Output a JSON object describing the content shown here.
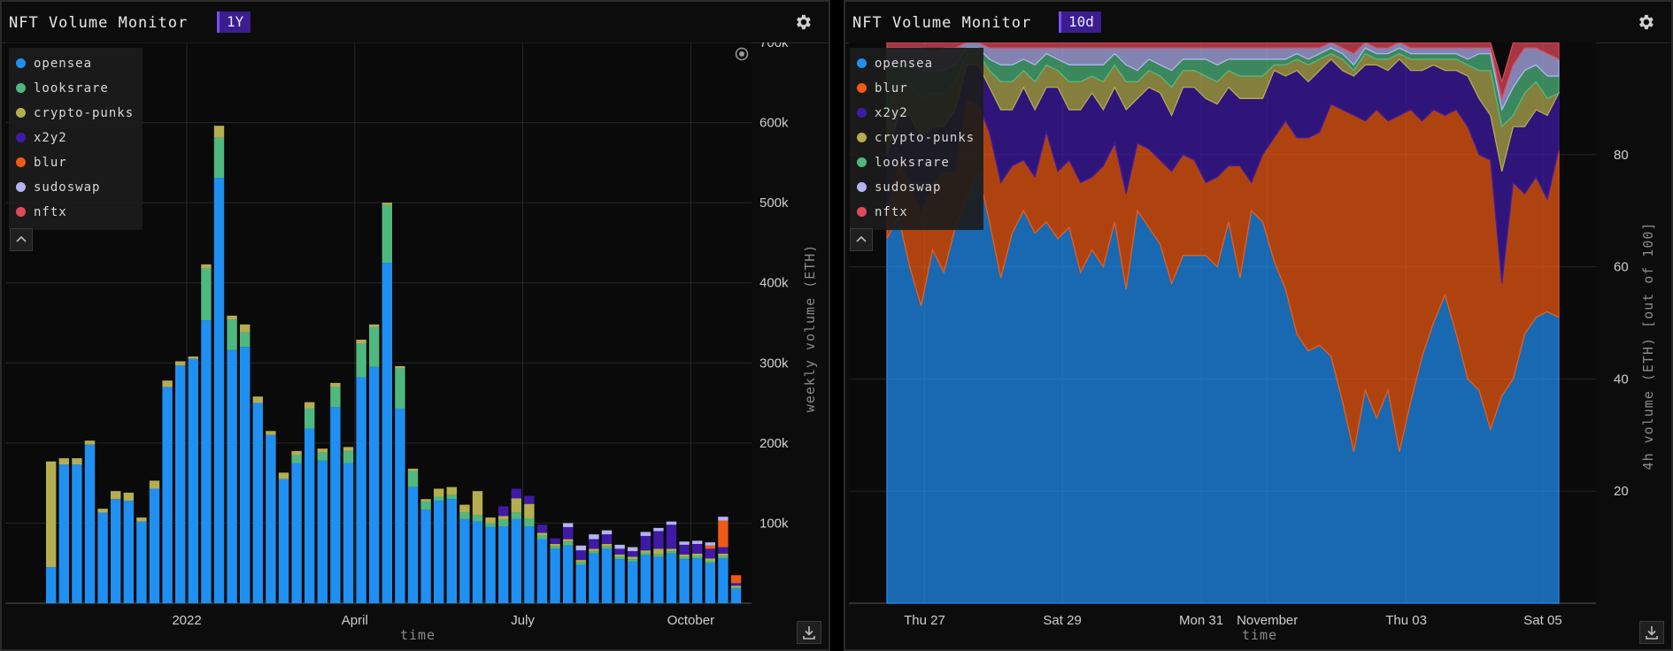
{
  "colors": {
    "opensea": "#1f8ff2",
    "looksrare": "#4fb87f",
    "crypto-punks": "#b5ad52",
    "x2y2": "#3e1aa6",
    "blur": "#f05a14",
    "sudoswap": "#b3b3f2",
    "nftx": "#e0495a"
  },
  "left": {
    "title": "NFT Volume Monitor",
    "range": "1Y",
    "legend": [
      "opensea",
      "looksrare",
      "crypto-punks",
      "x2y2",
      "blur",
      "sudoswap",
      "nftx"
    ],
    "chart_data": {
      "type": "bar",
      "stacked": true,
      "xlabel": "time",
      "ylabel": "weekly volume (ETH)",
      "ylim": [
        0,
        700000
      ],
      "y_ticks": [
        "100k",
        "200k",
        "300k",
        "400k",
        "500k",
        "600k",
        "700k"
      ],
      "x_ticks": [
        {
          "label": "2022",
          "index": 10.5
        },
        {
          "label": "April",
          "index": 23.5
        },
        {
          "label": "July",
          "index": 36.5
        },
        {
          "label": "October",
          "index": 49.5
        }
      ],
      "series": [
        {
          "name": "opensea",
          "values": [
            45000,
            173000,
            173000,
            198000,
            113000,
            130000,
            128000,
            102000,
            143000,
            270000,
            297000,
            305000,
            353000,
            531000,
            316000,
            320000,
            250000,
            210000,
            155000,
            175000,
            218000,
            178000,
            245000,
            175000,
            282000,
            295000,
            425000,
            243000,
            145000,
            117000,
            128000,
            130000,
            105000,
            102000,
            95000,
            96000,
            105000,
            96000,
            80000,
            68000,
            72000,
            48000,
            62000,
            68000,
            55000,
            52000,
            60000,
            58000,
            62000,
            55000,
            56000,
            50000,
            56000,
            18000
          ]
        },
        {
          "name": "looksrare",
          "values": [
            0,
            0,
            0,
            0,
            0,
            0,
            0,
            0,
            0,
            0,
            0,
            0,
            65000,
            50000,
            38000,
            18000,
            0,
            0,
            0,
            10000,
            25000,
            10000,
            25000,
            15000,
            42000,
            50000,
            72000,
            50000,
            20000,
            10000,
            5000,
            5000,
            8000,
            8000,
            5000,
            8000,
            8000,
            10000,
            5000,
            3000,
            5000,
            3000,
            3000,
            3000,
            3000,
            3000,
            3000,
            3000,
            3000,
            3000,
            3000,
            3000,
            3000,
            2000
          ]
        },
        {
          "name": "crypto-punks",
          "values": [
            132000,
            8000,
            8000,
            5000,
            5000,
            10000,
            10000,
            5000,
            10000,
            8000,
            5000,
            3000,
            5000,
            15000,
            5000,
            10000,
            8000,
            5000,
            8000,
            5000,
            8000,
            5000,
            5000,
            5000,
            5000,
            3000,
            3000,
            3000,
            3000,
            3000,
            10000,
            10000,
            10000,
            30000,
            7000,
            5000,
            18000,
            18000,
            3000,
            3000,
            3000,
            3000,
            3000,
            3000,
            3000,
            3000,
            3000,
            7000,
            3000,
            3000,
            3000,
            3000,
            3000,
            2000
          ]
        },
        {
          "name": "x2y2",
          "values": [
            0,
            0,
            0,
            0,
            0,
            0,
            0,
            0,
            0,
            0,
            0,
            0,
            0,
            0,
            0,
            0,
            0,
            0,
            0,
            0,
            0,
            0,
            0,
            0,
            0,
            0,
            0,
            0,
            0,
            0,
            0,
            0,
            0,
            0,
            0,
            12000,
            12000,
            10000,
            10000,
            7000,
            15000,
            12000,
            12000,
            12000,
            7000,
            7000,
            18000,
            22000,
            30000,
            12000,
            12000,
            12000,
            8000,
            3000
          ]
        },
        {
          "name": "blur",
          "values": [
            0,
            0,
            0,
            0,
            0,
            0,
            0,
            0,
            0,
            0,
            0,
            0,
            0,
            0,
            0,
            0,
            0,
            0,
            0,
            0,
            0,
            0,
            0,
            0,
            0,
            0,
            0,
            0,
            0,
            0,
            0,
            0,
            0,
            0,
            0,
            0,
            0,
            0,
            0,
            0,
            0,
            0,
            0,
            0,
            0,
            0,
            0,
            0,
            0,
            0,
            0,
            4000,
            33000,
            10000
          ]
        },
        {
          "name": "sudoswap",
          "values": [
            0,
            0,
            0,
            0,
            0,
            0,
            0,
            0,
            0,
            0,
            0,
            0,
            0,
            0,
            0,
            0,
            0,
            0,
            0,
            0,
            0,
            0,
            0,
            0,
            0,
            0,
            0,
            0,
            0,
            0,
            0,
            0,
            0,
            0,
            0,
            0,
            0,
            0,
            0,
            0,
            5000,
            6000,
            6000,
            5000,
            5000,
            5000,
            5000,
            4000,
            4000,
            4000,
            4000,
            4000,
            5000,
            0
          ]
        },
        {
          "name": "nftx",
          "values": [
            0,
            0,
            0,
            0,
            0,
            0,
            0,
            0,
            0,
            0,
            0,
            0,
            0,
            0,
            0,
            0,
            0,
            0,
            0,
            0,
            0,
            0,
            0,
            0,
            0,
            0,
            0,
            0,
            0,
            0,
            0,
            0,
            0,
            0,
            0,
            0,
            0,
            0,
            0,
            0,
            0,
            0,
            0,
            0,
            0,
            0,
            0,
            0,
            0,
            0,
            0,
            0,
            0,
            0
          ]
        }
      ]
    }
  },
  "right": {
    "title": "NFT Volume Monitor",
    "range": "10d",
    "legend": [
      "opensea",
      "blur",
      "x2y2",
      "crypto-punks",
      "looksrare",
      "sudoswap",
      "nftx"
    ],
    "chart_data": {
      "type": "area",
      "stacked": true,
      "xlabel": "time",
      "ylabel": "4h volume (ETH) [out of 100]",
      "ylim": [
        0,
        100
      ],
      "y_ticks": [
        "20",
        "40",
        "60",
        "80"
      ],
      "x_ticks": [
        {
          "label": "Thu 27",
          "index": 3.3
        },
        {
          "label": "Sat 29",
          "index": 15.4
        },
        {
          "label": "Mon 31",
          "index": 27.6
        },
        {
          "label": "November",
          "index": 33.4
        },
        {
          "label": "Thu 03",
          "index": 45.6
        },
        {
          "label": "Sat 05",
          "index": 57.6
        }
      ],
      "series": [
        {
          "name": "opensea",
          "values": [
            65,
            69,
            60,
            53,
            63,
            59,
            67,
            72,
            77,
            68,
            58,
            66,
            70,
            66,
            68,
            65,
            67,
            59,
            63,
            60,
            68,
            56,
            70,
            67,
            64,
            57,
            62,
            62,
            62,
            60,
            68,
            58,
            70,
            68,
            61,
            56,
            48,
            45,
            46,
            44,
            36,
            27,
            38,
            33,
            38,
            27,
            36,
            44,
            50,
            55,
            48,
            40,
            38,
            31,
            37,
            40,
            48,
            51,
            52,
            51
          ]
        },
        {
          "name": "blur",
          "values": [
            5,
            10,
            15,
            17,
            12,
            18,
            10,
            18,
            12,
            16,
            17,
            12,
            9,
            10,
            16,
            12,
            12,
            16,
            13,
            18,
            14,
            17,
            12,
            14,
            15,
            20,
            18,
            17,
            13,
            16,
            10,
            20,
            5,
            12,
            22,
            30,
            35,
            38,
            38,
            45,
            52,
            60,
            48,
            55,
            48,
            60,
            52,
            42,
            38,
            32,
            40,
            45,
            42,
            48,
            20,
            35,
            25,
            25,
            20,
            30
          ]
        },
        {
          "name": "x2y2",
          "values": [
            10,
            8,
            12,
            13,
            10,
            8,
            11,
            6,
            7,
            8,
            13,
            10,
            13,
            12,
            8,
            15,
            9,
            13,
            15,
            10,
            10,
            15,
            8,
            11,
            12,
            10,
            12,
            13,
            15,
            13,
            14,
            12,
            15,
            10,
            12,
            8,
            12,
            10,
            11,
            8,
            7,
            7,
            10,
            8,
            9,
            10,
            7,
            9,
            8,
            8,
            7,
            9,
            10,
            8,
            20,
            10,
            12,
            12,
            15,
            10
          ]
        },
        {
          "name": "crypto-punks",
          "values": [
            8,
            5,
            6,
            7,
            6,
            6,
            5,
            2,
            2,
            3,
            5,
            5,
            3,
            5,
            4,
            3,
            5,
            5,
            3,
            5,
            4,
            5,
            3,
            3,
            3,
            5,
            3,
            3,
            4,
            4,
            3,
            4,
            4,
            4,
            1,
            2,
            2,
            3,
            2,
            1,
            2,
            1,
            2,
            1,
            2,
            1,
            2,
            2,
            1,
            2,
            2,
            2,
            5,
            8,
            8,
            2,
            6,
            5,
            3,
            0
          ]
        },
        {
          "name": "looksrare",
          "values": [
            7,
            4,
            3,
            5,
            4,
            4,
            3,
            1,
            1,
            2,
            3,
            3,
            2,
            3,
            2,
            2,
            3,
            3,
            2,
            3,
            2,
            3,
            2,
            2,
            2,
            3,
            2,
            2,
            3,
            3,
            2,
            3,
            3,
            3,
            1,
            1,
            1,
            1,
            1,
            1,
            1,
            1,
            1,
            1,
            1,
            1,
            1,
            1,
            1,
            1,
            1,
            1,
            3,
            3,
            3,
            5,
            4,
            3,
            4,
            3
          ]
        },
        {
          "name": "sudoswap",
          "values": [
            4,
            3,
            3,
            4,
            3,
            4,
            3,
            1,
            1,
            2,
            3,
            3,
            2,
            3,
            1,
            2,
            3,
            3,
            3,
            3,
            1,
            3,
            4,
            2,
            3,
            4,
            2,
            2,
            2,
            3,
            2,
            2,
            2,
            2,
            2,
            2,
            1,
            2,
            1,
            1,
            1,
            2,
            1,
            1,
            1,
            1,
            1,
            1,
            1,
            1,
            1,
            2,
            1,
            1,
            2,
            4,
            4,
            3,
            4,
            3
          ]
        },
        {
          "name": "nftx",
          "values": [
            1,
            1,
            1,
            1,
            2,
            1,
            1,
            0,
            0,
            1,
            1,
            1,
            1,
            1,
            1,
            1,
            1,
            1,
            1,
            1,
            1,
            1,
            1,
            1,
            1,
            1,
            1,
            1,
            1,
            1,
            1,
            1,
            1,
            1,
            1,
            1,
            1,
            1,
            1,
            0,
            1,
            2,
            0,
            1,
            1,
            0,
            1,
            1,
            1,
            1,
            1,
            1,
            1,
            1,
            3,
            4,
            1,
            1,
            2,
            3
          ]
        }
      ]
    }
  }
}
